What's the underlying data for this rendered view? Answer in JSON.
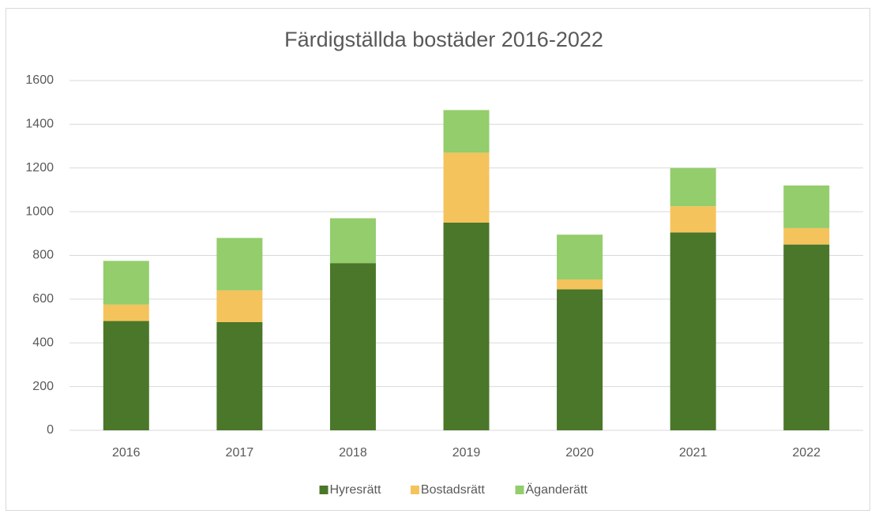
{
  "chart_data": {
    "type": "stacked_bar",
    "title": "Färdigställda bostäder 2016-2022",
    "categories": [
      "2016",
      "2017",
      "2018",
      "2019",
      "2020",
      "2021",
      "2022"
    ],
    "series": [
      {
        "name": "Hyresrätt",
        "color": "#4a7729",
        "values": [
          500,
          495,
          765,
          950,
          645,
          905,
          850
        ]
      },
      {
        "name": "Bostadsrätt",
        "color": "#f5c35b",
        "values": [
          75,
          145,
          0,
          320,
          45,
          120,
          75
        ]
      },
      {
        "name": "Äganderätt",
        "color": "#93cd6c",
        "values": [
          200,
          240,
          205,
          195,
          205,
          175,
          195
        ]
      }
    ],
    "ylim": [
      0,
      1600
    ],
    "yticks": [
      0,
      200,
      400,
      600,
      800,
      1000,
      1200,
      1400,
      1600
    ],
    "grid": true,
    "legend": "bottom"
  }
}
